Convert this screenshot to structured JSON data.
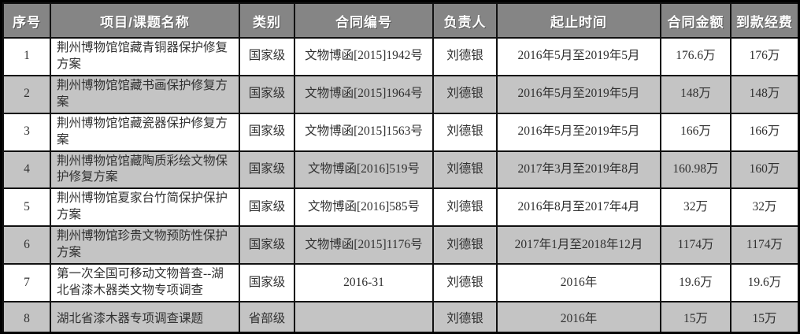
{
  "table": {
    "headers": [
      "序号",
      "项目/课题名称",
      "类别",
      "合同编号",
      "负责人",
      "起止时间",
      "合同金额",
      "到款经费"
    ],
    "column_keys": [
      "row-number",
      "project-name",
      "category",
      "contract-number",
      "person-in-charge",
      "time-period",
      "contract-amount",
      "received-funds"
    ],
    "rows": [
      [
        "1",
        "荆州博物馆馆藏青铜器保护修复方案",
        "国家级",
        "文物博函[2015]1942号",
        "刘德银",
        "2016年5月至2019年5月",
        "176.6万",
        "176万"
      ],
      [
        "2",
        "荆州博物馆馆藏书画保护修复方案",
        "国家级",
        "文物博函[2015]1964号",
        "刘德银",
        "2016年5月至2019年5月",
        "148万",
        "148万"
      ],
      [
        "3",
        "荆州博物馆馆藏瓷器保护修复方案",
        "国家级",
        "文物博函[2015]1563号",
        "刘德银",
        "2016年5月至2019年5月",
        "166万",
        "166万"
      ],
      [
        "4",
        "荆州博物馆馆藏陶质彩绘文物保护修复方案",
        "国家级",
        "文物博函[2016]519号",
        "刘德银",
        "2017年3月至2019年8月",
        "160.98万",
        "160万"
      ],
      [
        "5",
        "荆州博物馆夏家台竹简保护保护方案",
        "国家级",
        "文物博函[2016]585号",
        "刘德银",
        "2016年8月至2017年4月",
        "32万",
        "32万"
      ],
      [
        "6",
        "荆州博物馆珍贵文物预防性保护方案",
        "国家级",
        "文物博函[2015]1176号",
        "刘德银",
        "2017年1月至2018年12月",
        "1174万",
        "1174万"
      ],
      [
        "7",
        "第一次全国可移动文物普查--湖北省漆木器类文物专项调查",
        "国家级",
        "2016-31",
        "刘德银",
        "2016年",
        "19.6万",
        "19.6万"
      ],
      [
        "8",
        "湖北省漆木器专项调查课题",
        "省部级",
        "",
        "刘德银",
        "2016年",
        "15万",
        "15万"
      ]
    ],
    "colors": {
      "header_bg": "#858585",
      "header_text": "#ffffff",
      "row_odd_bg": "#ffffff",
      "row_even_bg": "#c4c4c4",
      "body_text": "#303030",
      "grid_border": "#111111",
      "outer_border": "#000000"
    }
  }
}
